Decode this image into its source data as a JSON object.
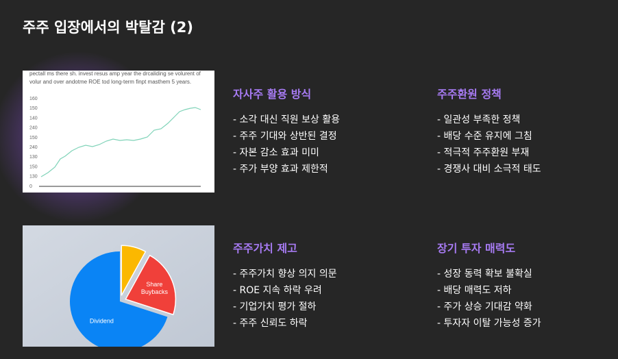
{
  "title": "주주 입장에서의 박탈감 (2)",
  "figure_1": {
    "caption_lines": [
      "pectall ms there sh. invest resus amp year the drcaliding se volurent of",
      "volur and over andotme ROE tod long-term finpt masthem 5 years."
    ],
    "axis_labels": [
      "160",
      "150",
      "140",
      "240",
      "150",
      "240",
      "130",
      "150",
      "130",
      "0"
    ]
  },
  "chart_data": {
    "type": "pie",
    "categories": [
      null,
      "Share Buybacks",
      "Dividend"
    ],
    "values": [
      8,
      22,
      70
    ],
    "colors": [
      "#fbb800",
      "#f0403a",
      "#0a84f5"
    ]
  },
  "sections": [
    {
      "heading": "자사주 활용 방식",
      "items": [
        "- 소각 대신 직원 보상 활용",
        "- 주주 기대와 상반된 결정",
        "- 자본 감소 효과 미미",
        "- 주가 부양 효과 제한적"
      ]
    },
    {
      "heading": "주주환원 정책",
      "items": [
        "- 일관성 부족한 정책",
        "- 배당 수준 유지에 그침",
        "- 적극적 주주환원 부재",
        "- 경쟁사 대비 소극적 태도"
      ]
    },
    {
      "heading": "주주가치 제고",
      "items": [
        "- 주주가치 향상 의지 의문",
        "- ROE 지속 하락 우려",
        "- 기업가치 평가 절하",
        "- 주주 신뢰도 하락"
      ]
    },
    {
      "heading": "장기 투자 매력도",
      "items": [
        "- 성장 동력 확보 불확실",
        "- 배당 매력도 저하",
        "- 주가 상승 기대감 약화",
        "- 투자자 이탈 가능성 증가"
      ]
    }
  ]
}
